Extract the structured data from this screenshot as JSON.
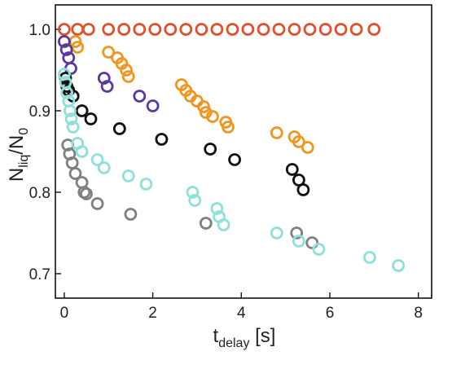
{
  "chart_data": {
    "type": "scatter",
    "xlabel": "t",
    "xlabel_sub": "delay",
    "xlabel_unit": " [s]",
    "ylabel": "N",
    "ylabel_sub1": "liq",
    "ylabel_mid": "/N",
    "ylabel_sub2": "0",
    "xlim": [
      -0.2,
      8.3
    ],
    "ylim": [
      0.67,
      1.03
    ],
    "x_ticks": [
      0,
      2,
      4,
      6,
      8
    ],
    "y_ticks": [
      0.7,
      0.8,
      0.9,
      1.0
    ],
    "y_tick_labels": [
      "0.7",
      "0.8",
      "0.9",
      "1.0"
    ],
    "marker": "open-circle",
    "grid": false,
    "series": [
      {
        "color": "#e0502a",
        "x": [
          0.0,
          0.3,
          0.55,
          1.0,
          1.35,
          1.7,
          2.05,
          2.4,
          2.75,
          3.1,
          3.45,
          3.8,
          4.15,
          4.5,
          4.85,
          5.2,
          5.55,
          5.9,
          6.25,
          6.6,
          7.0
        ],
        "y": [
          1.0,
          1.0,
          1.0,
          1.0,
          1.0,
          1.0,
          1.0,
          1.0,
          1.0,
          1.0,
          1.0,
          1.0,
          1.0,
          1.0,
          1.0,
          1.0,
          1.0,
          1.0,
          1.0,
          1.0,
          1.0
        ]
      },
      {
        "color": "#f0961e",
        "x": [
          0.25,
          0.3,
          1.0,
          1.2,
          1.3,
          1.4,
          1.45,
          2.65,
          2.75,
          2.85,
          3.0,
          3.15,
          3.2,
          3.35,
          3.65,
          3.7,
          4.8,
          5.2,
          5.3,
          5.5
        ],
        "y": [
          0.985,
          0.978,
          0.972,
          0.965,
          0.958,
          0.95,
          0.942,
          0.932,
          0.925,
          0.918,
          0.912,
          0.905,
          0.898,
          0.893,
          0.886,
          0.88,
          0.873,
          0.868,
          0.862,
          0.855
        ]
      },
      {
        "color": "#5b3aa0",
        "x": [
          0.0,
          0.05,
          0.1,
          0.15,
          0.9,
          0.97,
          1.7,
          2.0
        ],
        "y": [
          0.985,
          0.975,
          0.965,
          0.952,
          0.94,
          0.93,
          0.918,
          0.906
        ]
      },
      {
        "color": "#111111",
        "x": [
          0.03,
          0.06,
          0.1,
          0.2,
          0.4,
          0.6,
          1.25,
          2.2,
          3.3,
          3.85,
          5.15,
          5.3,
          5.4
        ],
        "y": [
          0.94,
          0.93,
          0.925,
          0.918,
          0.9,
          0.89,
          0.878,
          0.865,
          0.853,
          0.84,
          0.828,
          0.815,
          0.803
        ]
      },
      {
        "color": "#808080",
        "x": [
          0.08,
          0.12,
          0.18,
          0.25,
          0.4,
          0.45,
          0.5,
          0.75,
          1.5,
          3.2,
          5.25,
          5.6
        ],
        "y": [
          0.858,
          0.847,
          0.836,
          0.823,
          0.812,
          0.8,
          0.798,
          0.786,
          0.773,
          0.762,
          0.75,
          0.738
        ]
      },
      {
        "color": "#8ee0da",
        "x": [
          0.0,
          0.03,
          0.06,
          0.1,
          0.13,
          0.16,
          0.2,
          0.3,
          0.4,
          0.75,
          0.9,
          1.45,
          1.85,
          2.9,
          2.95,
          3.45,
          3.5,
          3.6,
          4.8,
          5.3,
          5.75,
          6.9,
          7.55
        ],
        "y": [
          0.945,
          0.935,
          0.922,
          0.912,
          0.9,
          0.89,
          0.88,
          0.86,
          0.85,
          0.84,
          0.83,
          0.82,
          0.81,
          0.8,
          0.79,
          0.78,
          0.77,
          0.76,
          0.75,
          0.74,
          0.73,
          0.72,
          0.71
        ]
      }
    ]
  }
}
